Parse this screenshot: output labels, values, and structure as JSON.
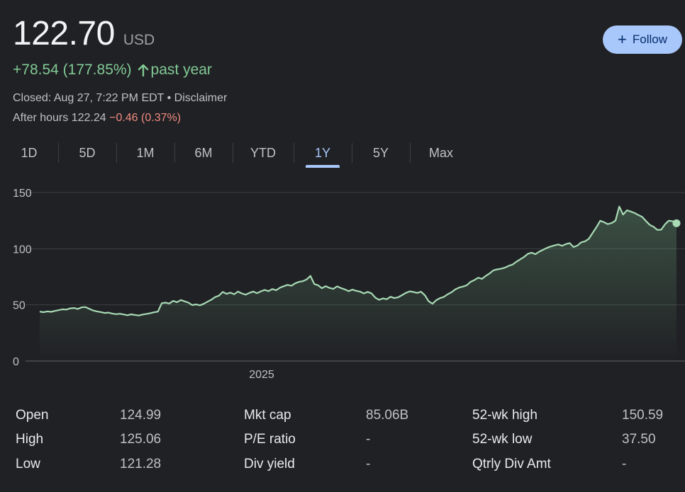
{
  "quote": {
    "price": "122.70",
    "currency": "USD",
    "change": "+78.54 (177.85%)",
    "period": "past year",
    "closed": "Closed: Aug 27, 7:22 PM EDT • Disclaimer",
    "after_hours_label": "After hours 122.24",
    "after_hours_change": "−0.46 (0.37%)"
  },
  "follow_label": "Follow",
  "tabs": [
    "1D",
    "5D",
    "1M",
    "6M",
    "YTD",
    "1Y",
    "5Y",
    "Max"
  ],
  "active_tab": "1Y",
  "colors": {
    "background": "#202124",
    "positive": "#81c995",
    "negative": "#f28b82",
    "accent": "#a8c7fa",
    "line": "#a8dab5"
  },
  "chart_data": {
    "type": "area",
    "y_ticks": [
      0,
      50,
      100,
      150
    ],
    "ylim": [
      0,
      150
    ],
    "x_ticks": [
      "2025"
    ],
    "grid": true,
    "series": [
      {
        "values": [
          44.0,
          43.5,
          44.2,
          43.8,
          44.6,
          45.3,
          46.1,
          45.8,
          46.9,
          47.2,
          46.4,
          47.8,
          48.1,
          46.5,
          45.0,
          44.2,
          43.6,
          42.8,
          43.1,
          42.3,
          41.7,
          42.1,
          41.5,
          40.8,
          41.6,
          41.0,
          40.5,
          41.4,
          42.0,
          42.6,
          43.4,
          44.0,
          51.5,
          52.0,
          51.2,
          53.6,
          52.4,
          54.3,
          53.1,
          52.0,
          49.8,
          50.5,
          49.6,
          50.9,
          52.8,
          54.6,
          57.0,
          58.2,
          61.5,
          59.8,
          60.9,
          59.5,
          61.8,
          60.2,
          59.1,
          60.6,
          61.9,
          60.4,
          62.1,
          63.3,
          62.2,
          64.1,
          63.0,
          65.3,
          66.6,
          67.8,
          67.0,
          69.2,
          70.5,
          71.1,
          72.6,
          75.8,
          68.6,
          67.5,
          64.8,
          66.7,
          65.1,
          64.2,
          66.5,
          65.0,
          63.8,
          62.2,
          63.6,
          62.5,
          61.8,
          60.2,
          61.6,
          60.3,
          56.5,
          54.5,
          55.8,
          55.0,
          57.2,
          56.0,
          56.8,
          58.6,
          60.6,
          62.0,
          61.5,
          60.6,
          61.7,
          58.6,
          53.2,
          51.0,
          54.2,
          56.0,
          57.1,
          59.5,
          61.2,
          63.8,
          65.4,
          66.3,
          67.5,
          70.5,
          72.1,
          74.2,
          73.2,
          75.8,
          78.0,
          80.8,
          81.6,
          82.2,
          83.1,
          84.8,
          85.9,
          88.4,
          90.5,
          92.6,
          95.4,
          96.5,
          95.1,
          97.4,
          99.0,
          100.7,
          102.0,
          102.9,
          103.8,
          102.6,
          104.1,
          105.0,
          101.5,
          102.8,
          105.7,
          106.6,
          108.8,
          114.0,
          119.2,
          124.9,
          123.6,
          121.9,
          122.9,
          125.0,
          137.6,
          130.4,
          134.2,
          133.1,
          131.8,
          130.0,
          128.3,
          124.6,
          121.2,
          119.5,
          116.7,
          117.0,
          121.8,
          125.0,
          124.4,
          122.7
        ]
      }
    ]
  },
  "stats": [
    [
      {
        "label": "Open",
        "value": "124.99"
      },
      {
        "label": "Mkt cap",
        "value": "85.06B"
      },
      {
        "label": "52-wk high",
        "value": "150.59"
      }
    ],
    [
      {
        "label": "High",
        "value": "125.06"
      },
      {
        "label": "P/E ratio",
        "value": "-"
      },
      {
        "label": "52-wk low",
        "value": "37.50"
      }
    ],
    [
      {
        "label": "Low",
        "value": "121.28"
      },
      {
        "label": "Div yield",
        "value": "-"
      },
      {
        "label": "Qtrly Div Amt",
        "value": "-"
      }
    ]
  ]
}
